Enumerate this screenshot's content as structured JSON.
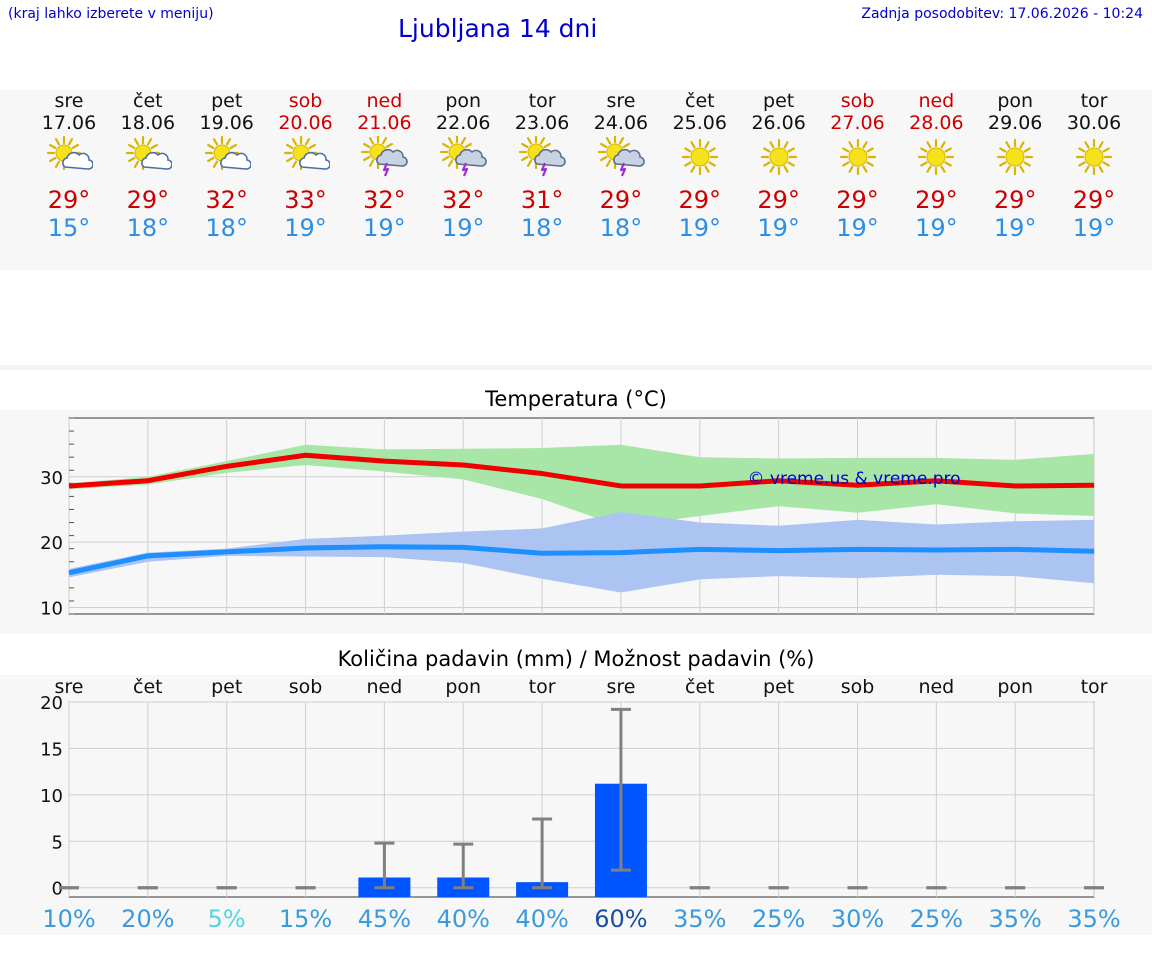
{
  "header": {
    "hint": "(kraj lahko izberete v meniju)",
    "title": "Ljubljana 14 dni",
    "updated": "Zadnja posodobitev: 17.06.2026 - 10:24"
  },
  "days": [
    {
      "name": "sre",
      "date": "17.06",
      "weekend": false,
      "icon": "sun-cloud-icon",
      "tmax": "29°",
      "tmin": "15°"
    },
    {
      "name": "čet",
      "date": "18.06",
      "weekend": false,
      "icon": "sun-cloud-icon",
      "tmax": "29°",
      "tmin": "18°"
    },
    {
      "name": "pet",
      "date": "19.06",
      "weekend": false,
      "icon": "sun-cloud-icon",
      "tmax": "32°",
      "tmin": "18°"
    },
    {
      "name": "sob",
      "date": "20.06",
      "weekend": true,
      "icon": "sun-cloud-icon",
      "tmax": "33°",
      "tmin": "19°"
    },
    {
      "name": "ned",
      "date": "21.06",
      "weekend": true,
      "icon": "thunderstorm-icon",
      "tmax": "32°",
      "tmin": "19°"
    },
    {
      "name": "pon",
      "date": "22.06",
      "weekend": false,
      "icon": "thunderstorm-icon",
      "tmax": "32°",
      "tmin": "19°"
    },
    {
      "name": "tor",
      "date": "23.06",
      "weekend": false,
      "icon": "thunderstorm-icon",
      "tmax": "31°",
      "tmin": "18°"
    },
    {
      "name": "sre",
      "date": "24.06",
      "weekend": false,
      "icon": "thunderstorm-icon",
      "tmax": "29°",
      "tmin": "18°"
    },
    {
      "name": "čet",
      "date": "25.06",
      "weekend": false,
      "icon": "sun-icon",
      "tmax": "29°",
      "tmin": "19°"
    },
    {
      "name": "pet",
      "date": "26.06",
      "weekend": false,
      "icon": "sun-icon",
      "tmax": "29°",
      "tmin": "19°"
    },
    {
      "name": "sob",
      "date": "27.06",
      "weekend": true,
      "icon": "sun-icon",
      "tmax": "29°",
      "tmin": "19°"
    },
    {
      "name": "ned",
      "date": "28.06",
      "weekend": true,
      "icon": "sun-icon",
      "tmax": "29°",
      "tmin": "19°"
    },
    {
      "name": "pon",
      "date": "29.06",
      "weekend": false,
      "icon": "sun-icon",
      "tmax": "29°",
      "tmin": "19°"
    },
    {
      "name": "tor",
      "date": "30.06",
      "weekend": false,
      "icon": "sun-icon",
      "tmax": "29°",
      "tmin": "19°"
    }
  ],
  "chart_data": [
    {
      "type": "line",
      "title": "Temperatura (°C)",
      "ylim": [
        9,
        39
      ],
      "yticks": [
        10,
        20,
        30
      ],
      "grid": true,
      "watermark": "© vreme.us & vreme.pro",
      "series": [
        {
          "color": "#ee0000",
          "values": [
            28.6,
            29.4,
            31.6,
            33.3,
            32.4,
            31.8,
            30.5,
            28.6,
            28.6,
            29.4,
            28.7,
            29.4,
            28.6,
            28.7
          ],
          "band_low": [
            28.1,
            28.8,
            30.6,
            31.8,
            30.8,
            29.6,
            26.6,
            22.4,
            24.0,
            25.5,
            24.5,
            25.8,
            24.4,
            24.0
          ],
          "band_high": [
            29.0,
            30.0,
            32.4,
            34.9,
            34.2,
            34.3,
            34.4,
            34.9,
            33.0,
            32.8,
            32.9,
            32.9,
            32.6,
            33.5
          ],
          "band_color": "#a8e6a8"
        },
        {
          "color": "#1e8fff",
          "values": [
            15.3,
            17.9,
            18.5,
            19.1,
            19.3,
            19.2,
            18.3,
            18.4,
            18.9,
            18.7,
            18.9,
            18.8,
            18.9,
            18.6
          ],
          "band_low": [
            14.6,
            17.0,
            17.9,
            17.8,
            17.7,
            16.8,
            14.4,
            12.3,
            14.3,
            14.8,
            14.5,
            15.0,
            14.8,
            13.7
          ],
          "band_high": [
            15.9,
            18.4,
            19.0,
            20.5,
            21.0,
            21.6,
            22.1,
            24.6,
            23.0,
            22.5,
            23.4,
            22.7,
            23.2,
            23.4
          ],
          "band_color": "#abc4f2"
        }
      ]
    },
    {
      "type": "bar",
      "title": "Količina padavin (mm) / Možnost padavin (%)",
      "categories": [
        "sre",
        "čet",
        "pet",
        "sob",
        "ned",
        "pon",
        "tor",
        "sre",
        "čet",
        "pet",
        "sob",
        "ned",
        "pon",
        "tor"
      ],
      "ylim": [
        -1,
        20
      ],
      "yticks": [
        0,
        5,
        10,
        15,
        20
      ],
      "values": [
        0,
        0,
        0,
        0,
        1.1,
        1.1,
        0.6,
        11.2,
        0,
        0,
        0,
        0,
        0,
        0
      ],
      "err_low": [
        0,
        0,
        0,
        0,
        0,
        0,
        0,
        1.9,
        0,
        0,
        0,
        0,
        0,
        0
      ],
      "err_high": [
        0,
        0,
        0,
        0,
        4.8,
        4.7,
        7.4,
        19.2,
        0,
        0,
        0,
        0,
        0,
        0
      ],
      "bar_color": "#0055ff",
      "probabilities": [
        "10%",
        "20%",
        "5%",
        "15%",
        "45%",
        "40%",
        "40%",
        "60%",
        "35%",
        "25%",
        "30%",
        "25%",
        "35%",
        "35%"
      ],
      "probability_colors": [
        "#3b9ad9",
        "#3b9ad9",
        "#55d4e0",
        "#3b9ad9",
        "#3b9ad9",
        "#3b9ad9",
        "#3b9ad9",
        "#1a4fa0",
        "#3b9ad9",
        "#3b9ad9",
        "#3b9ad9",
        "#3b9ad9",
        "#3b9ad9",
        "#3b9ad9"
      ]
    }
  ]
}
